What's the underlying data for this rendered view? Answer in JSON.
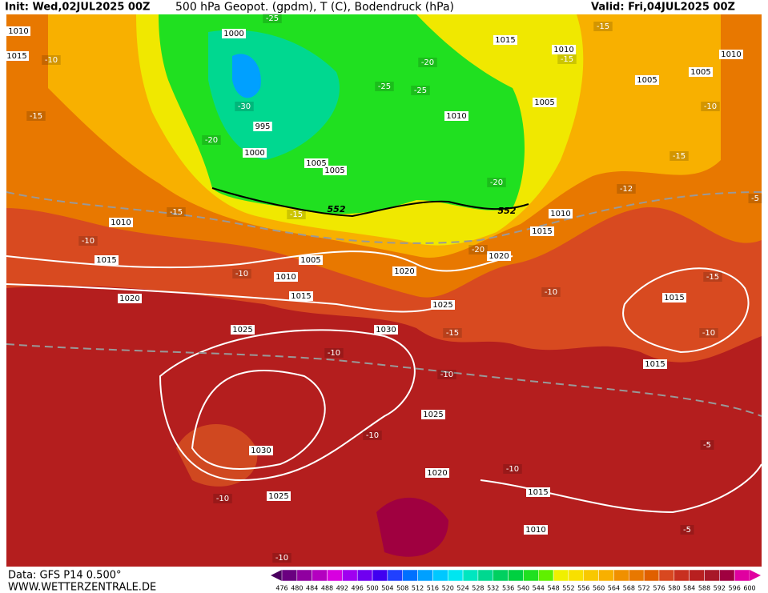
{
  "header": {
    "init": "Init: Wed,02JUL2025 00Z",
    "title": "500 hPa Geopot. (gpdm), T (C), Bodendruck (hPa)",
    "valid": "Valid: Fri,04JUL2025 00Z"
  },
  "footer": {
    "data": "Data: GFS P14 0.500°",
    "site": "WWW.WETTERZENTRALE.DE"
  },
  "legend": {
    "ticks": [
      476,
      480,
      484,
      488,
      492,
      496,
      500,
      504,
      508,
      512,
      516,
      520,
      524,
      528,
      532,
      536,
      540,
      544,
      548,
      552,
      556,
      560,
      564,
      568,
      572,
      576,
      580,
      584,
      588,
      592,
      596,
      600
    ],
    "colors": [
      "#4b0060",
      "#6a0080",
      "#9000a0",
      "#b400c0",
      "#d800e0",
      "#a000f0",
      "#7000f0",
      "#4000f0",
      "#2040ff",
      "#0070ff",
      "#00a0ff",
      "#00c8ff",
      "#00e6f0",
      "#00e6c0",
      "#00d890",
      "#00d060",
      "#00d040",
      "#20e020",
      "#60f000",
      "#f0f000",
      "#f8e000",
      "#f8c800",
      "#f8b000",
      "#f09000",
      "#e87800",
      "#e06000",
      "#d84820",
      "#c83020",
      "#b82020",
      "#a81828",
      "#a00040",
      "#e000a0"
    ]
  },
  "pressure_labels": [
    "1010",
    "1015",
    "1000",
    "995",
    "1000",
    "1005",
    "1005",
    "1015",
    "1010",
    "1010",
    "1005",
    "1005",
    "1005",
    "1010",
    "1010",
    "1015",
    "1020",
    "1010",
    "1015",
    "1005",
    "1010",
    "1015",
    "1020",
    "1025",
    "1030",
    "1020",
    "1025",
    "1015",
    "1015",
    "1025",
    "1030",
    "1020",
    "1025",
    "1015",
    "1010"
  ],
  "temperature_labels": [
    "-25",
    "-20",
    "-25",
    "-25",
    "-30",
    "-20",
    "-15",
    "-15",
    "-10",
    "-15",
    "-10",
    "-15",
    "-12",
    "-5",
    "-20",
    "-15",
    "-15",
    "-10",
    "-20",
    "-10",
    "-15",
    "-10",
    "-15",
    "-10",
    "-10",
    "-10",
    "-10",
    "-5",
    "-10",
    "-10",
    "-5",
    "-10"
  ],
  "geopotential_labels": [
    "552",
    "552"
  ]
}
